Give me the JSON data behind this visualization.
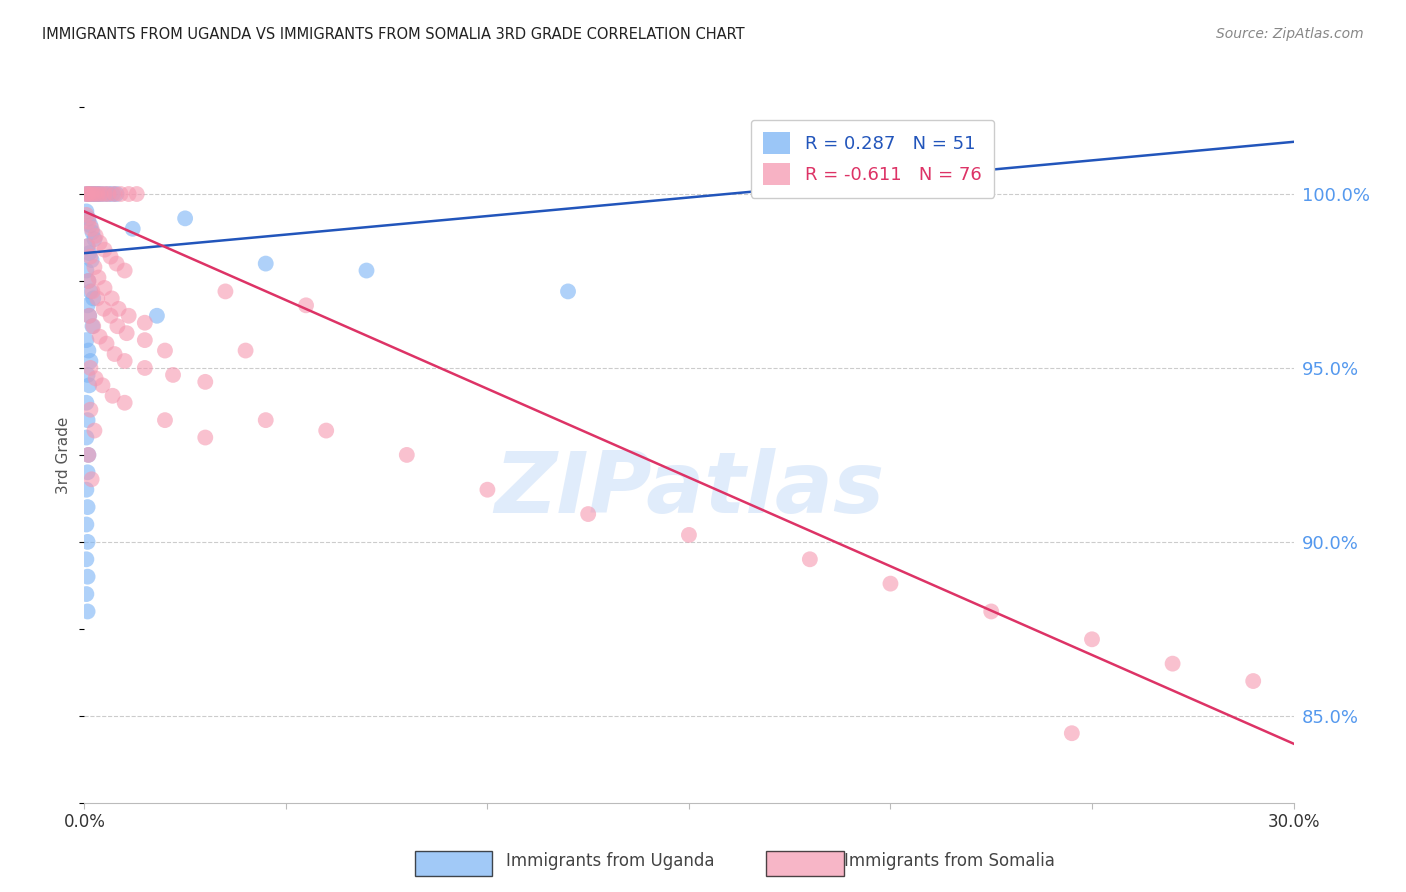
{
  "title": "IMMIGRANTS FROM UGANDA VS IMMIGRANTS FROM SOMALIA 3RD GRADE CORRELATION CHART",
  "source": "Source: ZipAtlas.com",
  "ylabel": "3rd Grade",
  "right_yticks": [
    100.0,
    95.0,
    90.0,
    85.0
  ],
  "right_ytick_labels": [
    "100.0%",
    "95.0%",
    "90.0%",
    "85.0%"
  ],
  "xmin": 0.0,
  "xmax": 30.0,
  "ymin": 82.5,
  "ymax": 102.5,
  "legend_uganda": "R = 0.287   N = 51",
  "legend_somalia": "R = -0.611   N = 76",
  "color_uganda": "#7ab3f5",
  "color_somalia": "#f598b0",
  "color_line_uganda": "#2255bb",
  "color_line_somalia": "#dd3366",
  "watermark_zip": "ZIP",
  "watermark_atlas": "atlas",
  "uganda_line_x": [
    0.0,
    30.0
  ],
  "uganda_line_y": [
    98.3,
    101.5
  ],
  "somalia_line_x": [
    0.0,
    30.0
  ],
  "somalia_line_y": [
    99.5,
    84.2
  ],
  "uganda_points": [
    [
      0.05,
      100.0
    ],
    [
      0.1,
      100.0
    ],
    [
      0.15,
      100.0
    ],
    [
      0.2,
      100.0
    ],
    [
      0.25,
      100.0
    ],
    [
      0.3,
      100.0
    ],
    [
      0.35,
      100.0
    ],
    [
      0.4,
      100.0
    ],
    [
      0.5,
      100.0
    ],
    [
      0.6,
      100.0
    ],
    [
      0.7,
      100.0
    ],
    [
      0.8,
      100.0
    ],
    [
      0.05,
      99.5
    ],
    [
      0.1,
      99.3
    ],
    [
      0.15,
      99.1
    ],
    [
      0.2,
      98.9
    ],
    [
      0.25,
      98.7
    ],
    [
      0.08,
      98.5
    ],
    [
      0.12,
      98.3
    ],
    [
      0.18,
      98.1
    ],
    [
      0.05,
      97.8
    ],
    [
      0.1,
      97.5
    ],
    [
      0.15,
      97.2
    ],
    [
      0.22,
      97.0
    ],
    [
      0.08,
      96.8
    ],
    [
      0.12,
      96.5
    ],
    [
      0.2,
      96.2
    ],
    [
      0.05,
      95.8
    ],
    [
      0.1,
      95.5
    ],
    [
      0.15,
      95.2
    ],
    [
      0.08,
      94.8
    ],
    [
      0.12,
      94.5
    ],
    [
      0.05,
      94.0
    ],
    [
      0.08,
      93.5
    ],
    [
      0.05,
      93.0
    ],
    [
      0.1,
      92.5
    ],
    [
      0.08,
      92.0
    ],
    [
      0.05,
      91.5
    ],
    [
      0.08,
      91.0
    ],
    [
      0.05,
      90.5
    ],
    [
      0.08,
      90.0
    ],
    [
      0.05,
      89.5
    ],
    [
      0.08,
      89.0
    ],
    [
      0.05,
      88.5
    ],
    [
      0.08,
      88.0
    ],
    [
      1.2,
      99.0
    ],
    [
      2.5,
      99.3
    ],
    [
      4.5,
      98.0
    ],
    [
      7.0,
      97.8
    ],
    [
      12.0,
      97.2
    ],
    [
      1.8,
      96.5
    ]
  ],
  "somalia_points": [
    [
      0.05,
      100.0
    ],
    [
      0.08,
      100.0
    ],
    [
      0.12,
      100.0
    ],
    [
      0.18,
      100.0
    ],
    [
      0.25,
      100.0
    ],
    [
      0.32,
      100.0
    ],
    [
      0.4,
      100.0
    ],
    [
      0.5,
      100.0
    ],
    [
      0.6,
      100.0
    ],
    [
      0.75,
      100.0
    ],
    [
      0.9,
      100.0
    ],
    [
      1.1,
      100.0
    ],
    [
      1.3,
      100.0
    ],
    [
      0.05,
      99.4
    ],
    [
      0.1,
      99.2
    ],
    [
      0.18,
      99.0
    ],
    [
      0.28,
      98.8
    ],
    [
      0.38,
      98.6
    ],
    [
      0.5,
      98.4
    ],
    [
      0.65,
      98.2
    ],
    [
      0.8,
      98.0
    ],
    [
      1.0,
      97.8
    ],
    [
      0.08,
      98.5
    ],
    [
      0.15,
      98.2
    ],
    [
      0.25,
      97.9
    ],
    [
      0.35,
      97.6
    ],
    [
      0.5,
      97.3
    ],
    [
      0.68,
      97.0
    ],
    [
      0.85,
      96.7
    ],
    [
      1.1,
      96.5
    ],
    [
      1.5,
      96.3
    ],
    [
      0.1,
      97.5
    ],
    [
      0.2,
      97.2
    ],
    [
      0.32,
      97.0
    ],
    [
      0.48,
      96.7
    ],
    [
      0.65,
      96.5
    ],
    [
      0.82,
      96.2
    ],
    [
      1.05,
      96.0
    ],
    [
      1.5,
      95.8
    ],
    [
      2.0,
      95.5
    ],
    [
      0.12,
      96.5
    ],
    [
      0.22,
      96.2
    ],
    [
      0.38,
      95.9
    ],
    [
      0.55,
      95.7
    ],
    [
      0.75,
      95.4
    ],
    [
      1.0,
      95.2
    ],
    [
      1.5,
      95.0
    ],
    [
      2.2,
      94.8
    ],
    [
      3.0,
      94.6
    ],
    [
      3.5,
      97.2
    ],
    [
      5.5,
      96.8
    ],
    [
      4.0,
      95.5
    ],
    [
      0.15,
      95.0
    ],
    [
      0.28,
      94.7
    ],
    [
      0.45,
      94.5
    ],
    [
      0.7,
      94.2
    ],
    [
      1.0,
      94.0
    ],
    [
      2.0,
      93.5
    ],
    [
      3.0,
      93.0
    ],
    [
      4.5,
      93.5
    ],
    [
      6.0,
      93.2
    ],
    [
      8.0,
      92.5
    ],
    [
      0.15,
      93.8
    ],
    [
      0.25,
      93.2
    ],
    [
      10.0,
      91.5
    ],
    [
      12.5,
      90.8
    ],
    [
      15.0,
      90.2
    ],
    [
      18.0,
      89.5
    ],
    [
      20.0,
      88.8
    ],
    [
      22.5,
      88.0
    ],
    [
      25.0,
      87.2
    ],
    [
      27.0,
      86.5
    ],
    [
      29.0,
      86.0
    ],
    [
      0.1,
      92.5
    ],
    [
      0.18,
      91.8
    ],
    [
      24.5,
      84.5
    ]
  ]
}
